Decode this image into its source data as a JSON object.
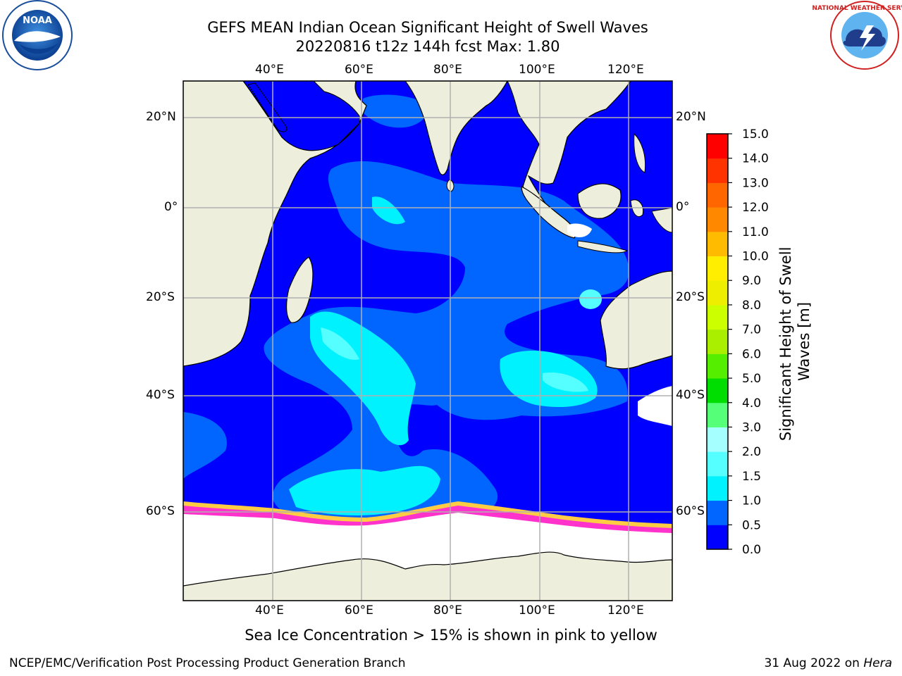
{
  "header": {
    "title_line1": "GEFS MEAN Indian Ocean Significant Height of Swell Waves",
    "title_line2": "20220816 t12z 144h fcst   Max: 1.80"
  },
  "logos": {
    "left": "noora-logo",
    "right": "national-weather-service-logo",
    "nws_text": "NATIONAL WEATHER SERVICE"
  },
  "map": {
    "lon_ticks": [
      "40°E",
      "60°E",
      "80°E",
      "100°E",
      "120°E"
    ],
    "lat_ticks_left": [
      "20°N",
      "0°",
      "20°S",
      "40°S",
      "60°S"
    ],
    "lat_ticks_right": [
      "20°N",
      "0°",
      "20°S",
      "40°S",
      "60°S"
    ],
    "colors": {
      "land": "#eeeedc",
      "sea_ice": "#ffffff",
      "grid": "#b0b0b0"
    }
  },
  "colorbar": {
    "label_line1": "Significant Height of Swell",
    "label_line2": "Waves [m]",
    "ticks": [
      "0.0",
      "0.5",
      "1.0",
      "1.5",
      "2.0",
      "3.0",
      "4.0",
      "5.0",
      "6.0",
      "7.0",
      "8.0",
      "9.0",
      "10.0",
      "11.0",
      "12.0",
      "13.0",
      "14.0",
      "15.0"
    ],
    "colors": [
      "#0000ff",
      "#0066ff",
      "#00f2ff",
      "#55ffff",
      "#a5ffff",
      "#55ff77",
      "#00dd00",
      "#55ee00",
      "#aaee00",
      "#ccff00",
      "#eeee00",
      "#ffee00",
      "#ffbb00",
      "#ff8800",
      "#ff6600",
      "#ff3300",
      "#ff0000"
    ]
  },
  "subtitle": "Sea Ice Concentration > 15% is shown in pink to yellow",
  "footer": {
    "left": "NCEP/EMC/Verification Post Processing Product Generation Branch",
    "right_prefix": "31 Aug 2022 on ",
    "right_host": "Hera"
  }
}
